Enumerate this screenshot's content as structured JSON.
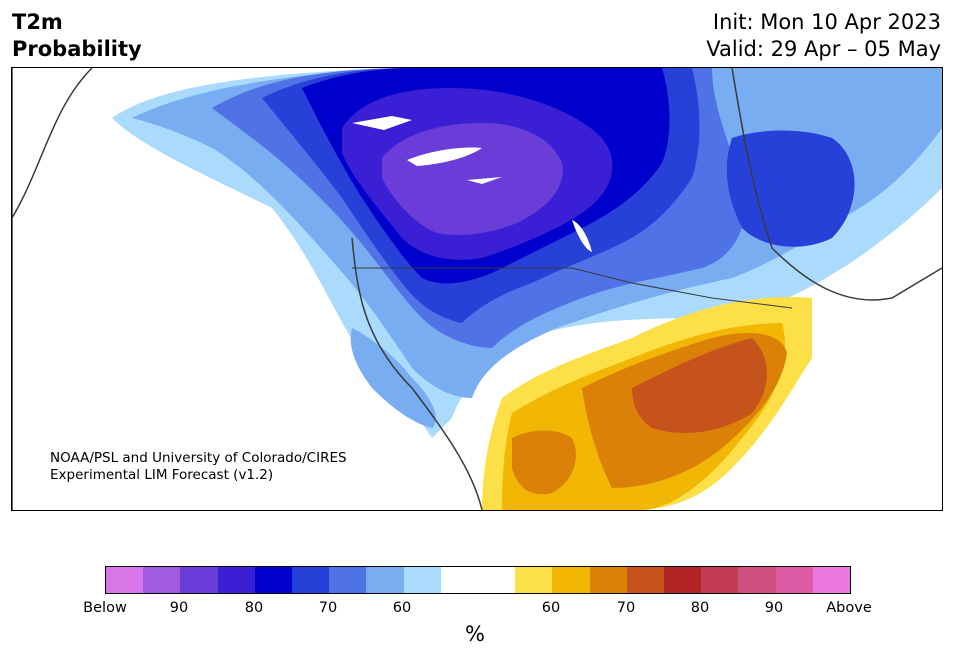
{
  "title": {
    "line1": "T2m",
    "line2": "Probability"
  },
  "header": {
    "init": "Init: Mon 10 Apr 2023",
    "valid": "Valid: 29 Apr – 05 May"
  },
  "credit": {
    "line1": "NOAA/PSL and University of Colorado/CIRES",
    "line2": "Experimental LIM Forecast (v1.2)"
  },
  "colorbar": {
    "colors": [
      "#d876e8",
      "#a05ce0",
      "#6b3dd8",
      "#3a1fd4",
      "#0000cd",
      "#2740d8",
      "#4f73e6",
      "#78adf2",
      "#abdbfc",
      "#ffffff",
      "#ffffff",
      "#fde047",
      "#f2b705",
      "#dc8108",
      "#c6531c",
      "#b22424",
      "#c03a52",
      "#cf4f80",
      "#dc5ba4",
      "#ea78df"
    ],
    "tick_labels": [
      "Below",
      "90",
      "80",
      "70",
      "60",
      "60",
      "70",
      "80",
      "90",
      "Above"
    ],
    "unit": "%"
  }
}
